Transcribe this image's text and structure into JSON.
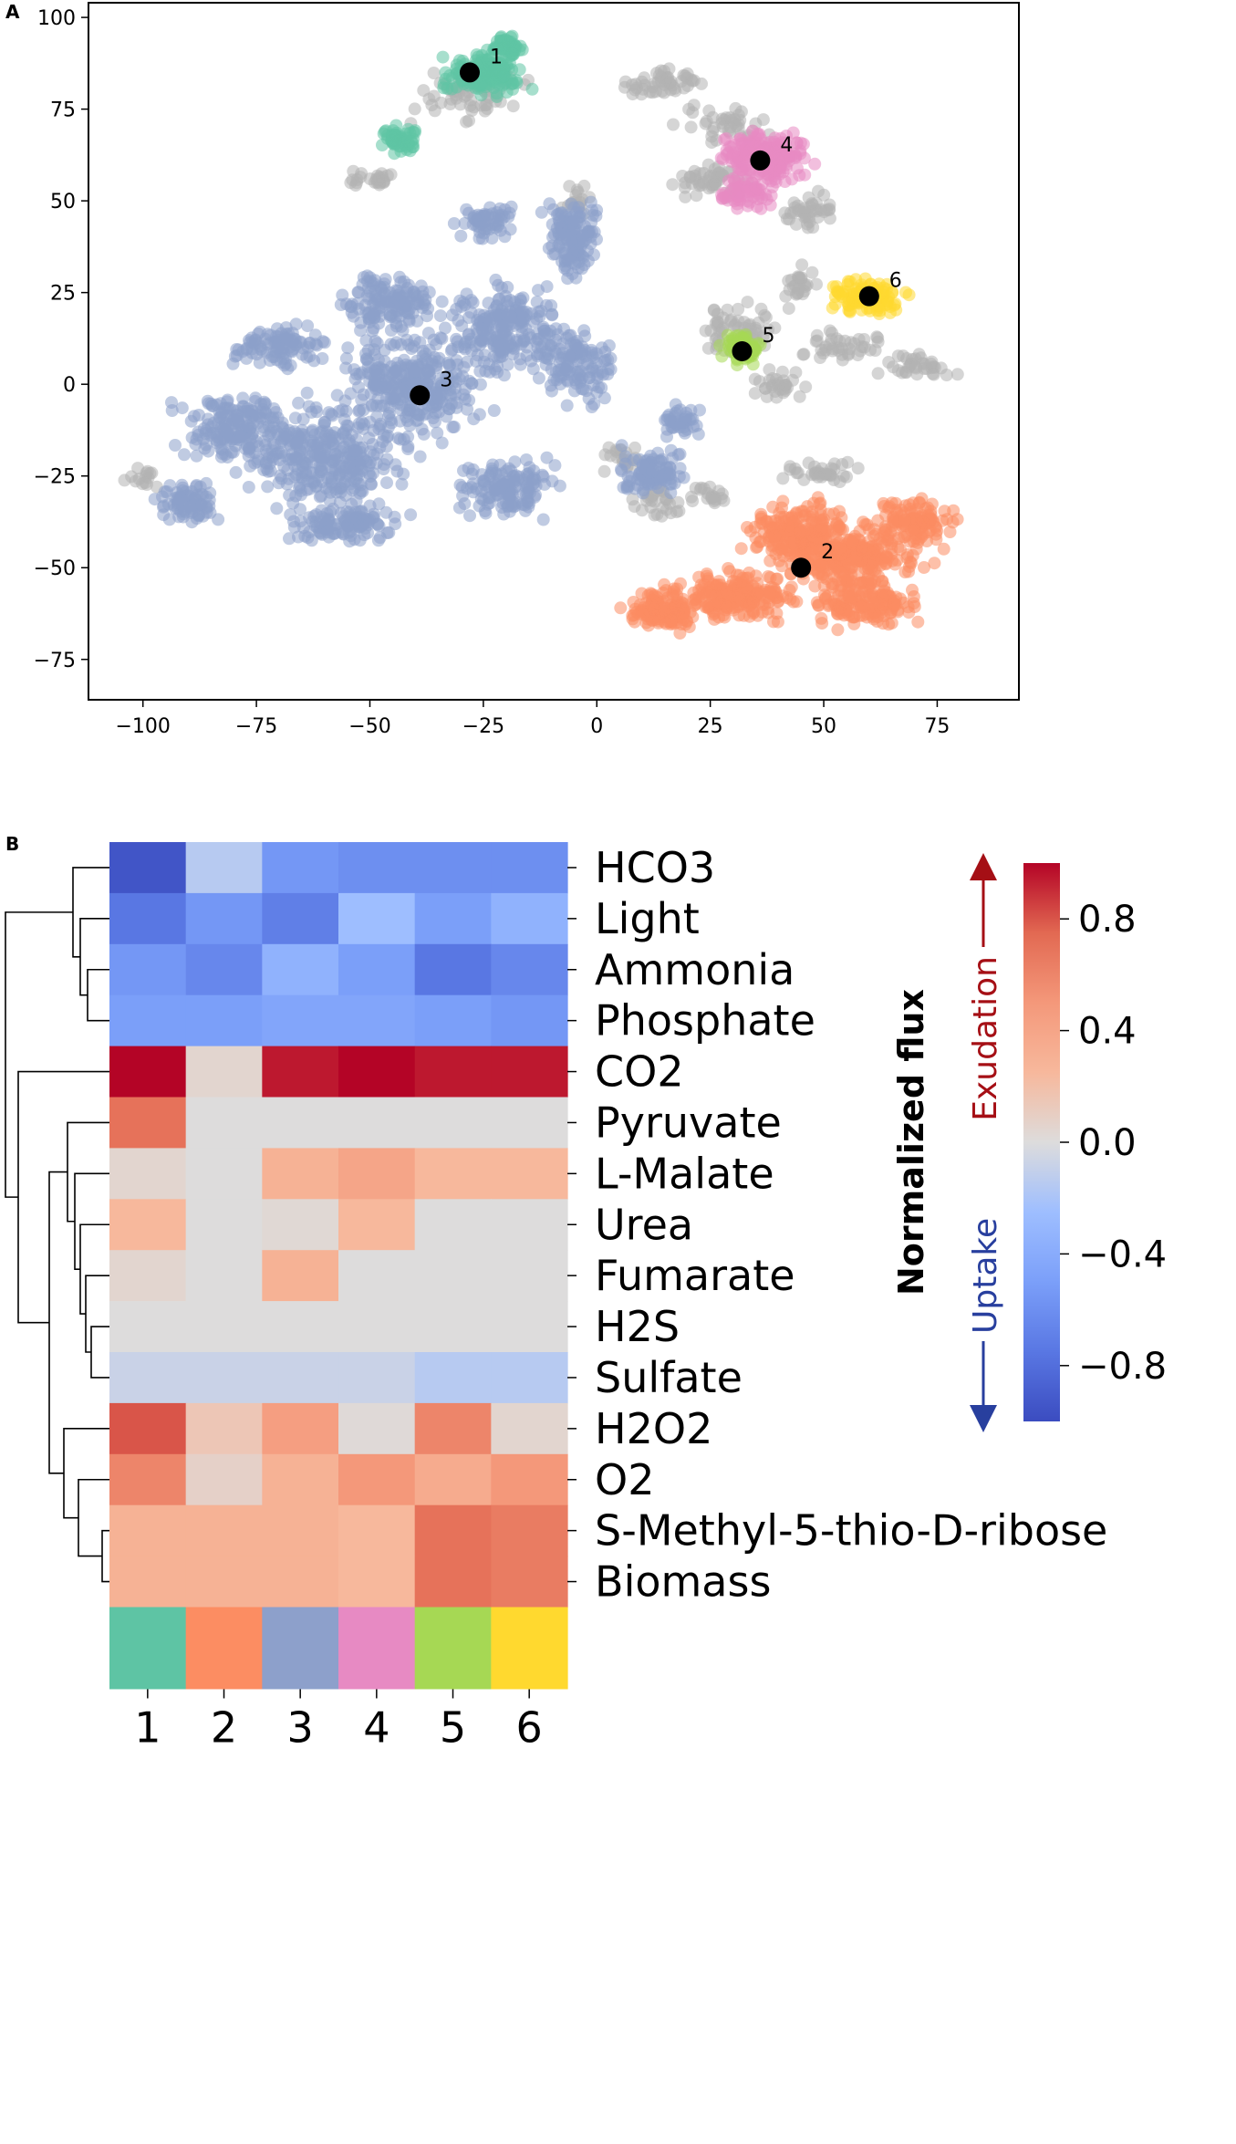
{
  "chart_data": [
    {
      "panel": "A",
      "type": "scatter",
      "title": "",
      "xlabel": "",
      "ylabel": "",
      "xlim": [
        -112,
        93
      ],
      "ylim": [
        -86,
        104
      ],
      "xticks": [
        -100,
        -75,
        -50,
        -25,
        0,
        25,
        50,
        75
      ],
      "yticks": [
        -75,
        -50,
        -25,
        0,
        25,
        50,
        75,
        100
      ],
      "tick_labels_x": [
        "−100",
        "−75",
        "−50",
        "−25",
        "0",
        "25",
        "50",
        "75"
      ],
      "tick_labels_y": [
        "−75",
        "−50",
        "−25",
        "0",
        "25",
        "50",
        "75",
        "100"
      ],
      "grid": false,
      "clusters": [
        {
          "name": "1",
          "color": "#5ec4a4",
          "center": [
            -28,
            85
          ]
        },
        {
          "name": "2",
          "color": "#fc8d62",
          "center": [
            45,
            -50
          ]
        },
        {
          "name": "3",
          "color": "#8da0cb",
          "center": [
            -39,
            -3
          ]
        },
        {
          "name": "4",
          "color": "#e78ac3",
          "center": [
            36,
            61
          ]
        },
        {
          "name": "5",
          "color": "#a6d854",
          "center": [
            32,
            9
          ]
        },
        {
          "name": "6",
          "color": "#ffd92f",
          "center": [
            60,
            24
          ]
        }
      ],
      "unassigned_color": "#b3b3b3",
      "centroid_color": "#000000"
    },
    {
      "panel": "B",
      "type": "heatmap",
      "columns": [
        "1",
        "2",
        "3",
        "4",
        "5",
        "6"
      ],
      "column_colors": [
        "#5ec4a4",
        "#fc8d62",
        "#8da0cb",
        "#e78ac3",
        "#a6d854",
        "#ffd92f"
      ],
      "rows": [
        "HCO3",
        "Light",
        "Ammonia",
        "Phosphate",
        "CO2",
        "Pyruvate",
        "L-Malate",
        "Urea",
        "Fumarate",
        "H2S",
        "Sulfate",
        "H2O2",
        "O2",
        "S-Methyl-5-thio-D-ribose",
        "Biomass"
      ],
      "values": [
        [
          -0.95,
          -0.15,
          -0.55,
          -0.6,
          -0.6,
          -0.6
        ],
        [
          -0.75,
          -0.55,
          -0.7,
          -0.25,
          -0.5,
          -0.35
        ],
        [
          -0.55,
          -0.65,
          -0.35,
          -0.5,
          -0.75,
          -0.65
        ],
        [
          -0.5,
          -0.5,
          -0.45,
          -0.45,
          -0.5,
          -0.55
        ],
        [
          1.0,
          0.05,
          0.95,
          1.0,
          0.95,
          0.95
        ],
        [
          0.7,
          0.0,
          0.0,
          0.0,
          0.0,
          0.0
        ],
        [
          0.05,
          0.0,
          0.3,
          0.4,
          0.25,
          0.25
        ],
        [
          0.25,
          0.0,
          0.03,
          0.25,
          0.0,
          0.0
        ],
        [
          0.05,
          0.0,
          0.3,
          0.0,
          0.0,
          0.0
        ],
        [
          0.0,
          0.0,
          0.0,
          0.0,
          0.0,
          0.0
        ],
        [
          -0.08,
          -0.08,
          -0.08,
          -0.08,
          -0.15,
          -0.15
        ],
        [
          0.8,
          0.15,
          0.45,
          0.02,
          0.6,
          0.05
        ],
        [
          0.6,
          0.08,
          0.3,
          0.5,
          0.35,
          0.5
        ],
        [
          0.3,
          0.3,
          0.3,
          0.25,
          0.7,
          0.65
        ],
        [
          0.3,
          0.3,
          0.3,
          0.25,
          0.7,
          0.65
        ]
      ],
      "colorbar": {
        "label": "Normalized flux",
        "range": [
          -1,
          1
        ],
        "ticks": [
          0.8,
          0.4,
          0.0,
          -0.4,
          -0.8
        ],
        "tick_labels": [
          "0.8",
          "0.4",
          "0.0",
          "−0.4",
          "−0.8"
        ],
        "up_label": "Exudation",
        "down_label": "Uptake",
        "up_color": "#a50f15",
        "down_color": "#283f9e"
      }
    }
  ]
}
